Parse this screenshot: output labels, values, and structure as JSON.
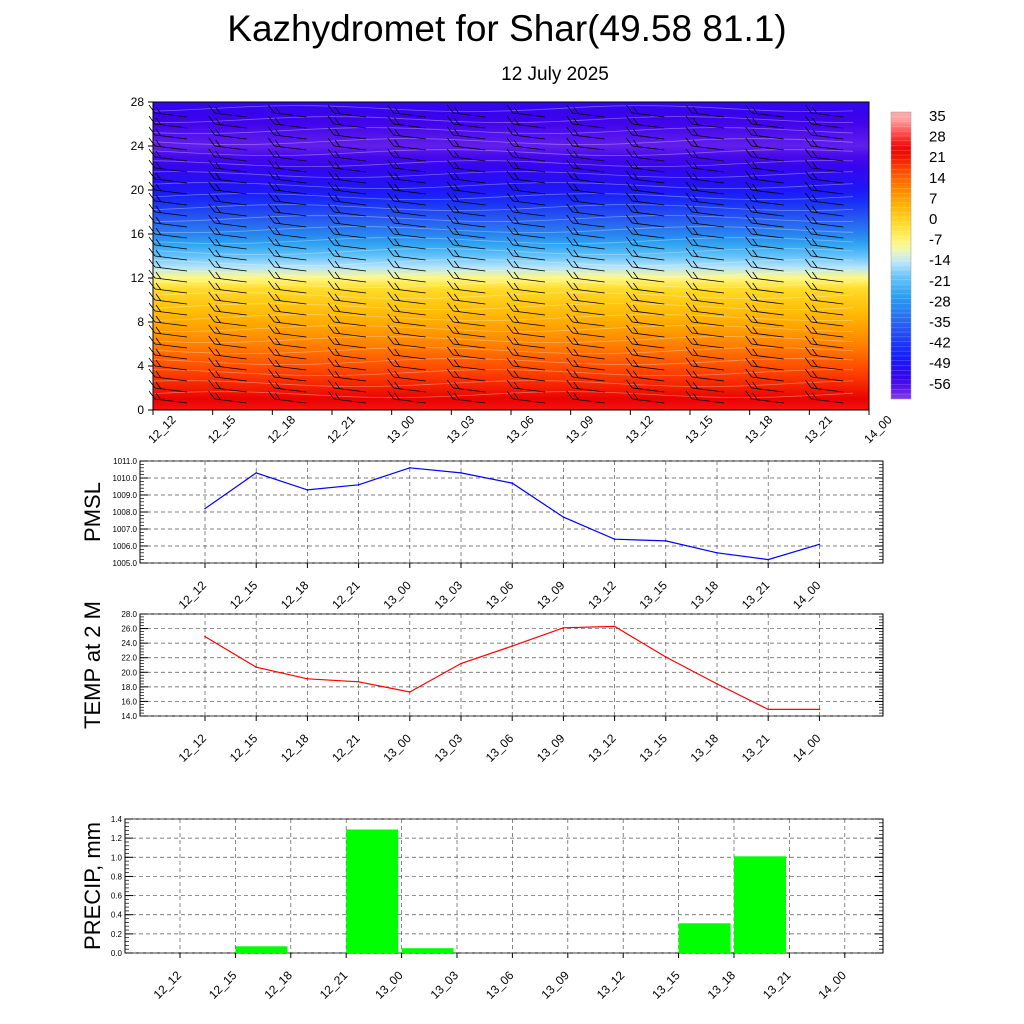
{
  "title": "Kazhydromet for Shar(49.58 81.1)",
  "subtitle": "12 July 2025",
  "colors": {
    "pmsl": "#0000ff",
    "temp": "#ff0000",
    "precip": "#00ff00"
  },
  "chart_data": [
    {
      "type": "heatmap",
      "name": "cross_section",
      "x_categories": [
        "12_12",
        "12_15",
        "12_18",
        "12_21",
        "13_00",
        "13_03",
        "13_06",
        "13_09",
        "13_12",
        "13_15",
        "13_18",
        "13_21",
        "14_00"
      ],
      "yticks": [
        0,
        4,
        8,
        12,
        16,
        20,
        24,
        28
      ],
      "ylim": [
        0,
        28
      ],
      "colorbar_labels": [
        "35",
        "28",
        "21",
        "14",
        "7",
        "0",
        "-7",
        "-14",
        "-21",
        "-28",
        "-35",
        "-42",
        "-49",
        "-56"
      ],
      "temperature_profile": [
        {
          "y": 0,
          "t": 26
        },
        {
          "y": 4,
          "t": 17
        },
        {
          "y": 8,
          "t": 7
        },
        {
          "y": 11,
          "t": 0
        },
        {
          "y": 13,
          "t": -13
        },
        {
          "y": 16,
          "t": -28
        },
        {
          "y": 20,
          "t": -46
        },
        {
          "y": 24,
          "t": -55
        },
        {
          "y": 28,
          "t": -50
        }
      ],
      "wind_barbs": true
    },
    {
      "type": "line",
      "name": "pmsl",
      "ylabel": "PMSL",
      "categories": [
        "12_12",
        "12_15",
        "12_18",
        "12_21",
        "13_00",
        "13_03",
        "13_06",
        "13_09",
        "13_12",
        "13_15",
        "13_18",
        "13_21",
        "14_00"
      ],
      "values": [
        1008.2,
        1010.3,
        1009.3,
        1009.6,
        1010.6,
        1010.3,
        1009.7,
        1007.7,
        1006.4,
        1006.3,
        1005.6,
        1005.2,
        1006.1
      ],
      "ylim": [
        1005.0,
        1011.0
      ],
      "yticks": [
        "1005.0",
        "1006.0",
        "1007.0",
        "1008.0",
        "1009.0",
        "1010.0",
        "1011.0"
      ],
      "grid": true
    },
    {
      "type": "line",
      "name": "temp",
      "ylabel": "TEMP at 2 M",
      "categories": [
        "12_12",
        "12_15",
        "12_18",
        "12_21",
        "13_00",
        "13_03",
        "13_06",
        "13_09",
        "13_12",
        "13_15",
        "13_18",
        "13_21",
        "14_00"
      ],
      "values": [
        24.9,
        20.7,
        19.1,
        18.7,
        17.3,
        21.2,
        23.6,
        26.1,
        26.3,
        22.1,
        18.4,
        14.9,
        14.9
      ],
      "ylim": [
        14.0,
        28.0
      ],
      "yticks": [
        "14.0",
        "16.0",
        "18.0",
        "20.0",
        "22.0",
        "24.0",
        "26.0",
        "28.0"
      ],
      "grid": true
    },
    {
      "type": "bar",
      "name": "precip",
      "ylabel": "PRECIP, mm",
      "categories": [
        "12_12",
        "12_15",
        "12_18",
        "12_21",
        "13_00",
        "13_03",
        "13_06",
        "13_09",
        "13_12",
        "13_15",
        "13_18",
        "13_21",
        "14_00"
      ],
      "values": [
        0,
        0.07,
        0,
        1.29,
        0.05,
        0,
        0,
        0,
        0,
        0.31,
        1.01,
        0,
        0
      ],
      "ylim": [
        0,
        1.4
      ],
      "yticks": [
        "0.0",
        "0.2",
        "0.4",
        "0.6",
        "0.8",
        "1.0",
        "1.2",
        "1.4"
      ],
      "grid": true
    }
  ]
}
